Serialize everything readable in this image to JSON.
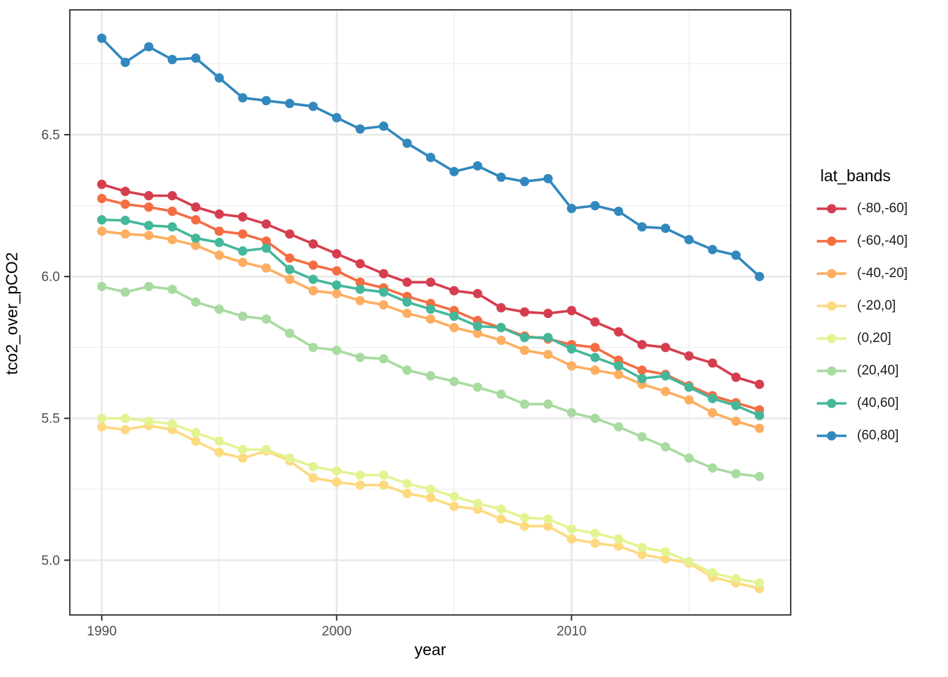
{
  "chart_data": {
    "type": "line",
    "title": "",
    "xlabel": "year",
    "ylabel": "tco2_over_pCO2",
    "legend_title": "lat_bands",
    "legend_position": "right",
    "grid": true,
    "background": "#ffffff",
    "grid_major_color": "#e8e8e8",
    "grid_minor_color": "#f0f0f0",
    "panel_border_color": "#404040",
    "tick_color": "#333333",
    "tick_label_color": "#4d4d4d",
    "xlim": [
      1988.64,
      2019.33
    ],
    "ylim": [
      4.807,
      6.94
    ],
    "x_ticks": [
      1990,
      2000,
      2010
    ],
    "x_minor_ticks": [
      1995,
      2005,
      2015
    ],
    "y_ticks": [
      5.0,
      5.5,
      6.0,
      6.5
    ],
    "y_minor_ticks": [
      5.25,
      5.75,
      6.25,
      6.75
    ],
    "x": [
      1990,
      1991,
      1992,
      1993,
      1994,
      1995,
      1996,
      1997,
      1998,
      1999,
      2000,
      2001,
      2002,
      2003,
      2004,
      2005,
      2006,
      2007,
      2008,
      2009,
      2010,
      2011,
      2012,
      2013,
      2014,
      2015,
      2016,
      2017,
      2018
    ],
    "series": [
      {
        "name": "(-80,-60]",
        "color": "#d53e4f",
        "values": [
          6.325,
          6.3,
          6.285,
          6.285,
          6.245,
          6.22,
          6.21,
          6.185,
          6.15,
          6.115,
          6.08,
          6.045,
          6.01,
          5.98,
          5.98,
          5.95,
          5.94,
          5.89,
          5.875,
          5.87,
          5.88,
          5.84,
          5.805,
          5.76,
          5.75,
          5.72,
          5.695,
          5.645,
          5.62
        ]
      },
      {
        "name": "(-60,-40]",
        "color": "#f46d43",
        "values": [
          6.275,
          6.255,
          6.245,
          6.23,
          6.2,
          6.16,
          6.15,
          6.125,
          6.065,
          6.04,
          6.02,
          5.98,
          5.96,
          5.93,
          5.905,
          5.88,
          5.845,
          5.82,
          5.79,
          5.78,
          5.76,
          5.75,
          5.705,
          5.67,
          5.655,
          5.615,
          5.58,
          5.555,
          5.53
        ]
      },
      {
        "name": "(-40,-20]",
        "color": "#fdae61",
        "values": [
          6.16,
          6.15,
          6.145,
          6.13,
          6.11,
          6.075,
          6.05,
          6.03,
          5.99,
          5.95,
          5.94,
          5.915,
          5.9,
          5.87,
          5.85,
          5.82,
          5.8,
          5.775,
          5.74,
          5.725,
          5.685,
          5.67,
          5.655,
          5.62,
          5.595,
          5.565,
          5.52,
          5.49,
          5.465
        ]
      },
      {
        "name": "(-20,0]",
        "color": "#fdd980",
        "values": [
          5.47,
          5.46,
          5.475,
          5.46,
          5.42,
          5.38,
          5.36,
          5.385,
          5.35,
          5.29,
          5.275,
          5.265,
          5.265,
          5.235,
          5.22,
          5.19,
          5.18,
          5.145,
          5.12,
          5.12,
          5.075,
          5.06,
          5.05,
          5.02,
          5.005,
          4.99,
          4.94,
          4.92,
          4.9
        ]
      },
      {
        "name": "(0,20]",
        "color": "#e4f392",
        "values": [
          5.5,
          5.5,
          5.49,
          5.48,
          5.45,
          5.42,
          5.39,
          5.39,
          5.36,
          5.33,
          5.315,
          5.3,
          5.3,
          5.27,
          5.25,
          5.225,
          5.2,
          5.18,
          5.15,
          5.145,
          5.11,
          5.095,
          5.075,
          5.045,
          5.03,
          4.995,
          4.955,
          4.935,
          4.92
        ]
      },
      {
        "name": "(20,40]",
        "color": "#a8dba0",
        "values": [
          5.965,
          5.945,
          5.965,
          5.955,
          5.91,
          5.885,
          5.86,
          5.85,
          5.8,
          5.75,
          5.74,
          5.715,
          5.71,
          5.67,
          5.65,
          5.63,
          5.61,
          5.585,
          5.55,
          5.55,
          5.52,
          5.5,
          5.47,
          5.435,
          5.4,
          5.36,
          5.325,
          5.305,
          5.295
        ]
      },
      {
        "name": "(40,60]",
        "color": "#44b79b",
        "values": [
          6.2,
          6.198,
          6.18,
          6.175,
          6.135,
          6.12,
          6.09,
          6.1,
          6.025,
          5.99,
          5.97,
          5.955,
          5.945,
          5.91,
          5.885,
          5.86,
          5.825,
          5.82,
          5.785,
          5.785,
          5.745,
          5.715,
          5.685,
          5.64,
          5.65,
          5.61,
          5.57,
          5.545,
          5.51
        ]
      },
      {
        "name": "(60,80]",
        "color": "#3288bd",
        "values": [
          6.84,
          6.755,
          6.81,
          6.765,
          6.77,
          6.7,
          6.63,
          6.62,
          6.61,
          6.6,
          6.56,
          6.52,
          6.53,
          6.47,
          6.42,
          6.37,
          6.39,
          6.35,
          6.335,
          6.345,
          6.24,
          6.25,
          6.23,
          6.175,
          6.17,
          6.13,
          6.095,
          6.075,
          6.0
        ]
      }
    ]
  }
}
